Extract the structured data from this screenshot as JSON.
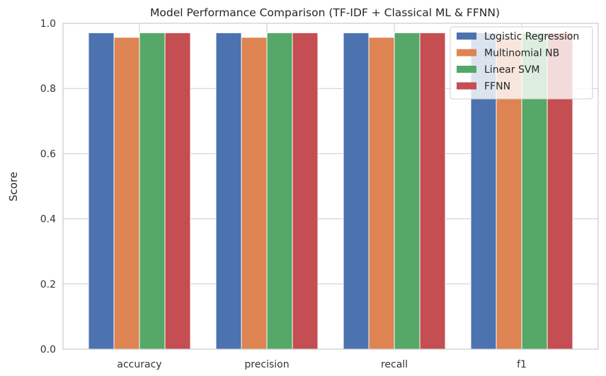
{
  "chart_data": {
    "type": "bar",
    "title": "Model Performance Comparison (TF-IDF + Classical ML & FFNN)",
    "xlabel": "",
    "ylabel": "Score",
    "ylim": [
      0,
      1.0
    ],
    "yticks": [
      "0.0",
      "0.2",
      "0.4",
      "0.6",
      "0.8",
      "1.0"
    ],
    "categories": [
      "accuracy",
      "precision",
      "recall",
      "f1"
    ],
    "series": [
      {
        "name": "Logistic Regression",
        "color": "#4c72b0",
        "values": [
          0.971,
          0.971,
          0.971,
          0.971
        ]
      },
      {
        "name": "Multinomial NB",
        "color": "#dd8452",
        "values": [
          0.957,
          0.957,
          0.957,
          0.956
        ]
      },
      {
        "name": "Linear SVM",
        "color": "#55a868",
        "values": [
          0.971,
          0.971,
          0.971,
          0.971
        ]
      },
      {
        "name": "FFNN",
        "color": "#c44e52",
        "values": [
          0.971,
          0.971,
          0.971,
          0.971
        ]
      }
    ],
    "grid": true,
    "legend_position": "top-right"
  }
}
